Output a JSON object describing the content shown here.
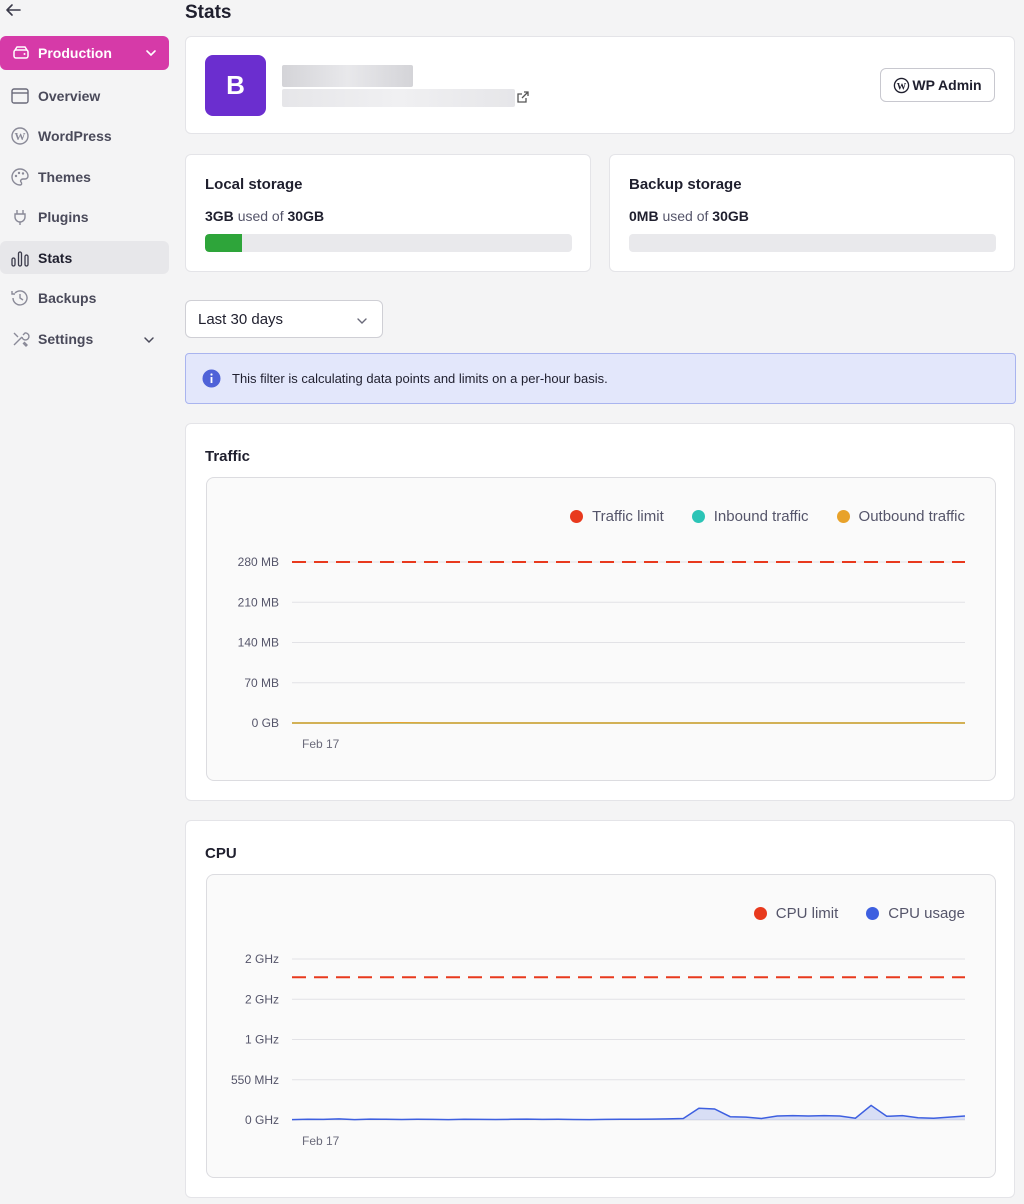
{
  "sidebar": {
    "environment_label": "Production",
    "items": [
      {
        "label": "Overview",
        "icon": "browser-window-icon"
      },
      {
        "label": "WordPress",
        "icon": "wordpress-icon"
      },
      {
        "label": "Themes",
        "icon": "palette-icon"
      },
      {
        "label": "Plugins",
        "icon": "plug-icon"
      },
      {
        "label": "Stats",
        "icon": "bar-chart-icon",
        "active": true
      },
      {
        "label": "Backups",
        "icon": "history-icon"
      },
      {
        "label": "Settings",
        "icon": "tools-icon",
        "has_chevron": true
      }
    ]
  },
  "page_title": "Stats",
  "site": {
    "avatar_letter": "B",
    "avatar_color": "#6b2ecf",
    "wp_admin_label": "WP Admin"
  },
  "local_storage": {
    "title": "Local storage",
    "used": "3GB",
    "used_of": "used of",
    "total": "30GB",
    "fraction": 0.1
  },
  "backup_storage": {
    "title": "Backup storage",
    "used": "0MB",
    "used_of": "used of",
    "total": "30GB",
    "fraction": 0
  },
  "range_select": {
    "value": "Last 30 days"
  },
  "info_banner": {
    "text": "This filter is calculating data points and limits on a per-hour basis."
  },
  "colors": {
    "accent": "#d63aa8",
    "limit": "#e8391d",
    "inbound": "#2bc4b6",
    "outbound": "#e8a22a",
    "cpu_usage": "#3d5fe0",
    "storage_fill": "#2ea53a"
  },
  "chart_data": [
    {
      "type": "line",
      "title": "Traffic",
      "legend_placement": "top-right",
      "grid": true,
      "y_ticks": [
        "0 GB",
        "70 MB",
        "140 MB",
        "210 MB",
        "280 MB"
      ],
      "y_tick_values": [
        0,
        70,
        140,
        210,
        280
      ],
      "ylim": [
        0,
        280
      ],
      "x_ticks": [
        "Feb 17"
      ],
      "series": [
        {
          "name": "Traffic limit",
          "color": "#e8391d",
          "dashed": true,
          "values": [
            280,
            280
          ]
        },
        {
          "name": "Inbound traffic",
          "color": "#2bc4b6",
          "values": [
            0,
            0,
            0,
            0,
            0,
            0,
            0,
            0,
            0,
            0,
            0,
            0,
            0,
            0,
            0,
            0,
            0,
            0,
            0,
            0
          ]
        },
        {
          "name": "Outbound traffic",
          "color": "#e8a22a",
          "values": [
            0,
            0,
            0,
            0.5,
            0,
            0,
            0,
            0,
            0,
            0,
            0,
            0,
            0,
            0,
            0,
            0,
            0,
            0,
            0.3,
            0
          ]
        }
      ]
    },
    {
      "type": "area",
      "title": "CPU",
      "legend_placement": "top-right",
      "grid": true,
      "y_ticks": [
        "0 GHz",
        "550 MHz",
        "1 GHz",
        "2 GHz",
        "2 GHz"
      ],
      "y_tick_values": [
        0,
        550,
        1100,
        1650,
        2200
      ],
      "ylim": [
        0,
        2200
      ],
      "x_ticks": [
        "Feb 17"
      ],
      "series": [
        {
          "name": "CPU limit",
          "color": "#e8391d",
          "dashed": true,
          "values": [
            1950,
            1950
          ]
        },
        {
          "name": "CPU usage",
          "color": "#3d5fe0",
          "values": [
            5,
            10,
            8,
            15,
            6,
            12,
            9,
            7,
            10,
            8,
            6,
            9,
            8,
            7,
            10,
            12,
            8,
            9,
            7,
            6,
            8,
            10,
            9,
            12,
            15,
            20,
            160,
            150,
            45,
            40,
            20,
            55,
            60,
            55,
            60,
            55,
            25,
            200,
            50,
            60,
            30,
            25,
            40,
            55
          ]
        }
      ]
    }
  ]
}
